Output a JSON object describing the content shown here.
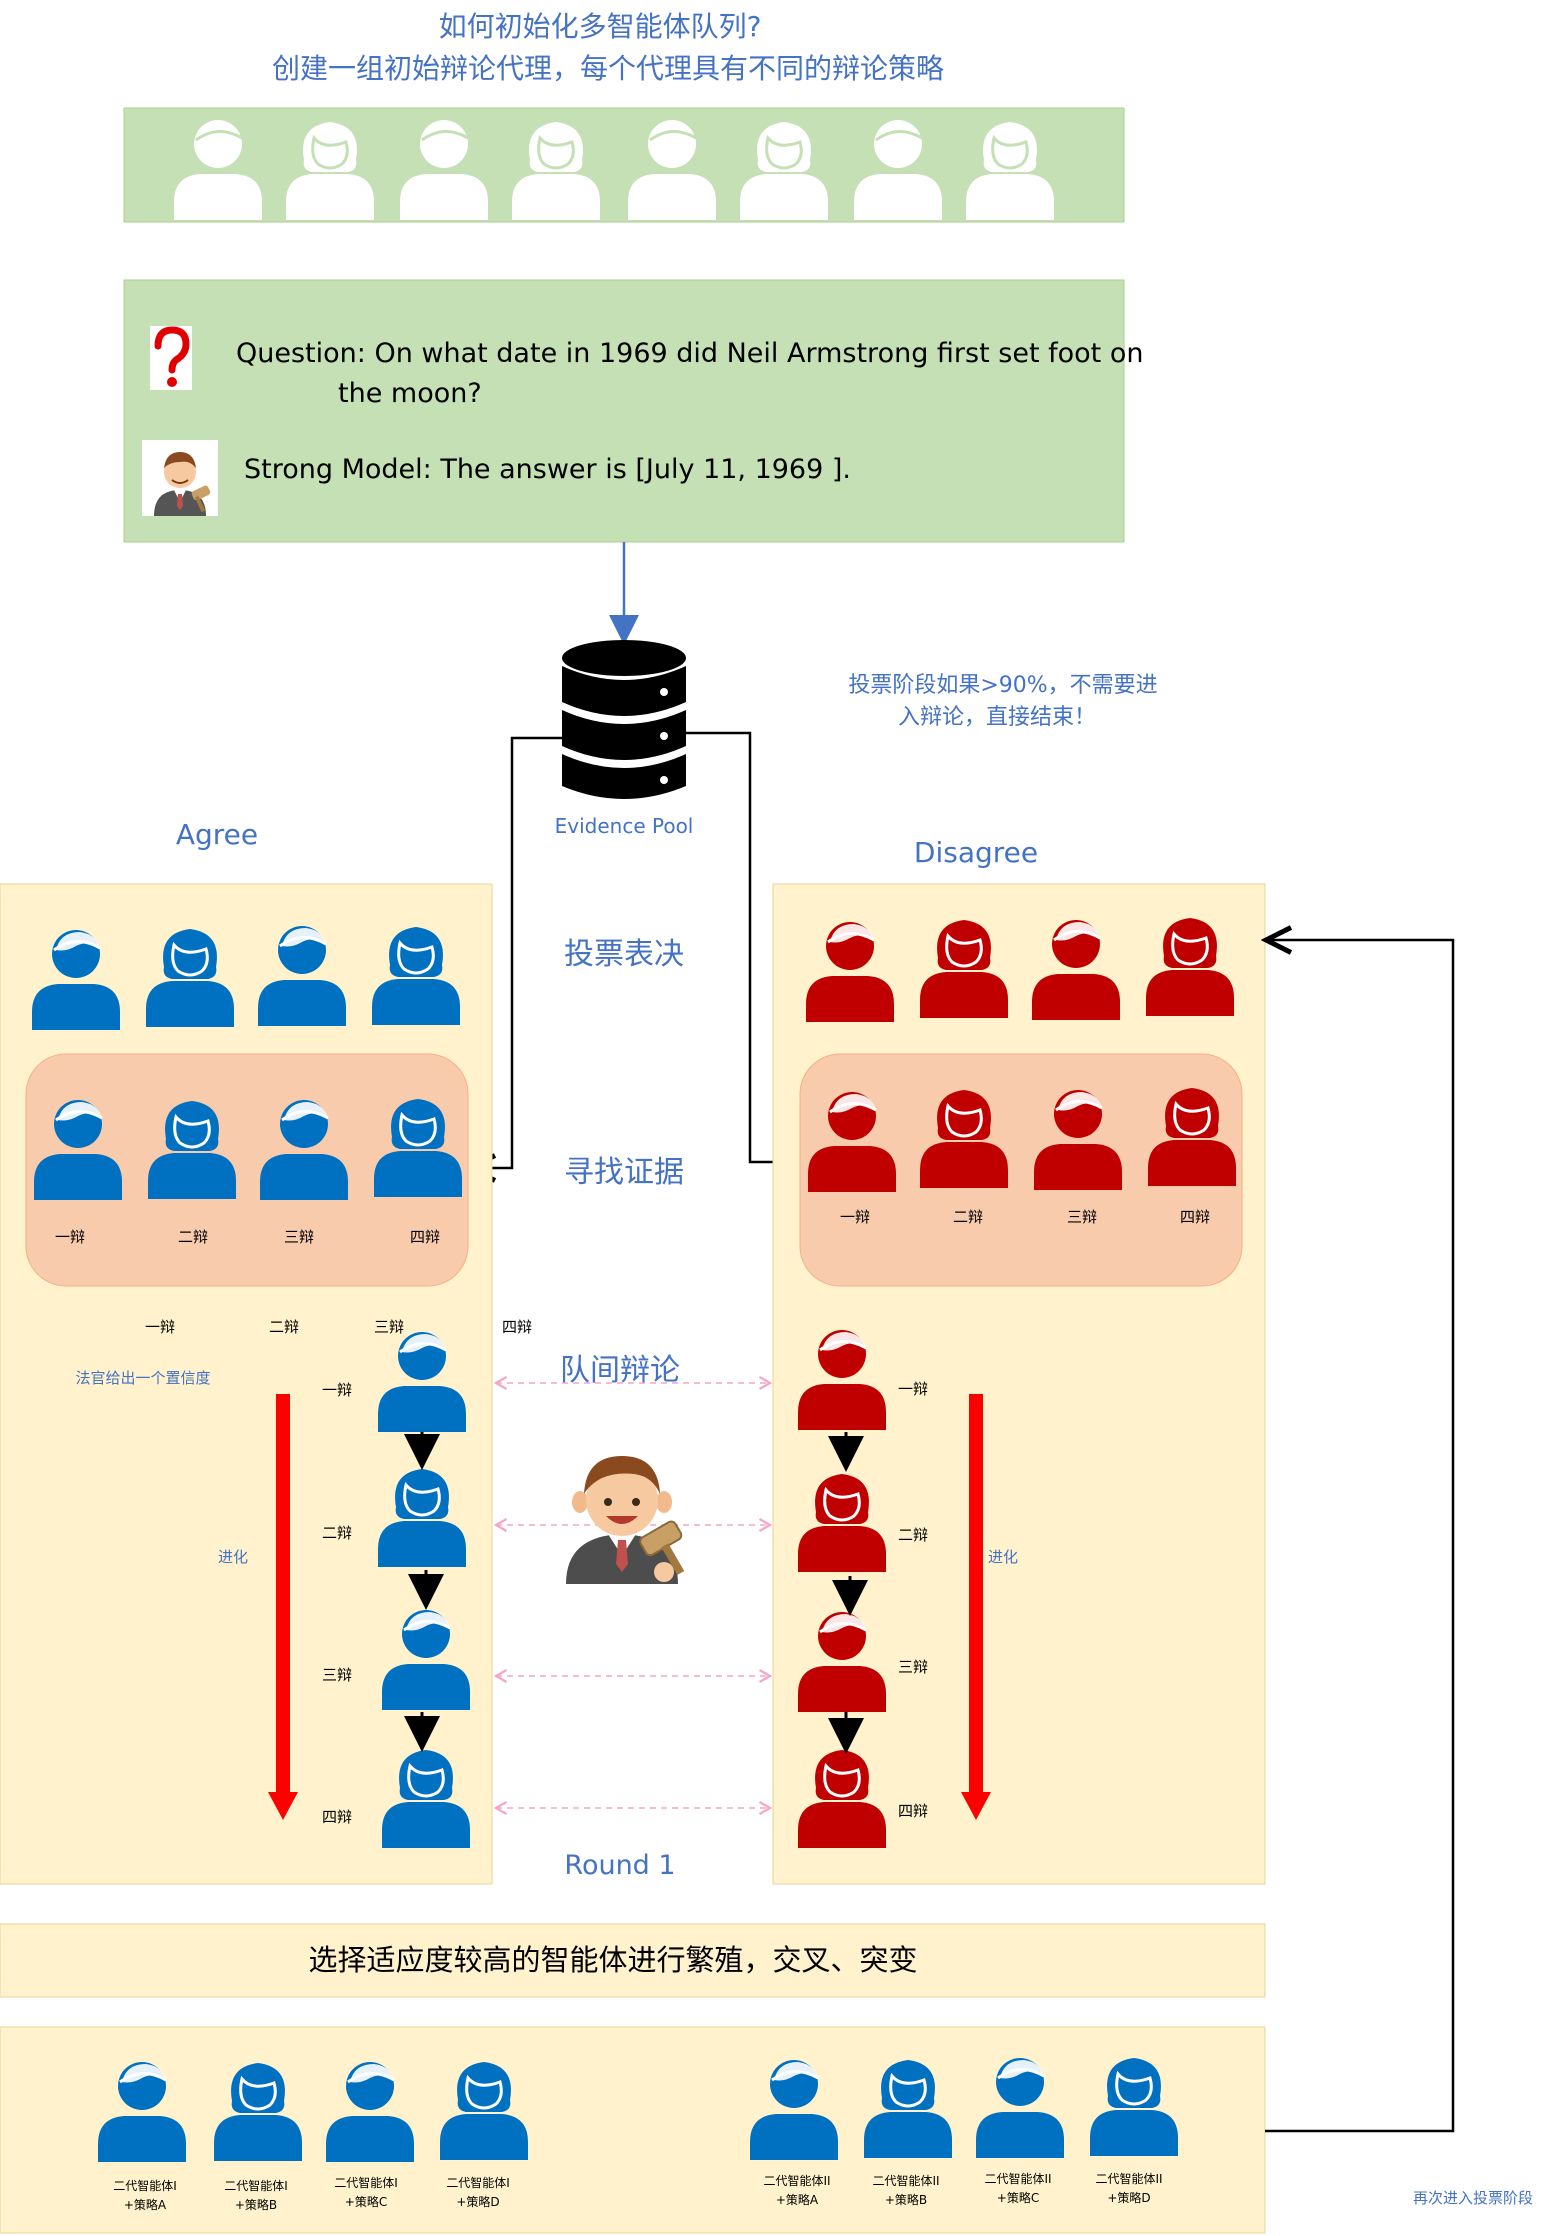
{
  "header": {
    "line1": "如何初始化多智能体队列?",
    "line2": "创建一组初始辩论代理，每个代理具有不同的辩论策略"
  },
  "question_box": {
    "question": "Question: On what date in 1969 did Neil Armstrong first set foot on",
    "question_cont": "the moon?",
    "answer": "Strong Model: The answer is [July 11, 1969 ]."
  },
  "evidence_pool": {
    "label": "Evidence Pool"
  },
  "note_skip": {
    "line1": "投票阶段如果>90%，不需要进",
    "line2": "入辩论，直接结束！"
  },
  "teams": {
    "agree": "Agree",
    "disagree": "Disagree"
  },
  "stages": {
    "vote": "投票表决",
    "evidence": "寻找证据",
    "debate": "队间辩论",
    "round": "Round 1"
  },
  "positions": {
    "first": "一辩",
    "second": "二辩",
    "third": "三辩",
    "fourth": "四辩"
  },
  "judge_note": "法官给出一个置信度",
  "evolve": "进化",
  "selection_bar": "选择适应度较高的智能体进行繁殖，交叉、突变",
  "next_gen": {
    "left": [
      {
        "name": "二代智能体I",
        "strategy": "+策略A"
      },
      {
        "name": "二代智能体I",
        "strategy": "+策略B"
      },
      {
        "name": "二代智能体I",
        "strategy": "+策略C"
      },
      {
        "name": "二代智能体I",
        "strategy": "+策略D"
      }
    ],
    "right": [
      {
        "name": "二代智能体II",
        "strategy": "+策略A"
      },
      {
        "name": "二代智能体II",
        "strategy": "+策略B"
      },
      {
        "name": "二代智能体II",
        "strategy": "+策略C"
      },
      {
        "name": "二代智能体II",
        "strategy": "+策略D"
      }
    ]
  },
  "reenter_vote": "再次进入投票阶段",
  "colors": {
    "green_bg": "#c5e0b4",
    "cream_bg": "#fff2cc",
    "peach_bg": "#f8cbad",
    "blue_person": "#0070c0",
    "red_person": "#c00000",
    "title_blue": "#4472c4",
    "evolve_arrow": "#ff0000"
  },
  "icons": {
    "question": "question-mark-icon",
    "judge": "judge-gavel-icon",
    "database": "database-icon",
    "person_male": "person-male-icon",
    "person_female": "person-female-icon"
  }
}
